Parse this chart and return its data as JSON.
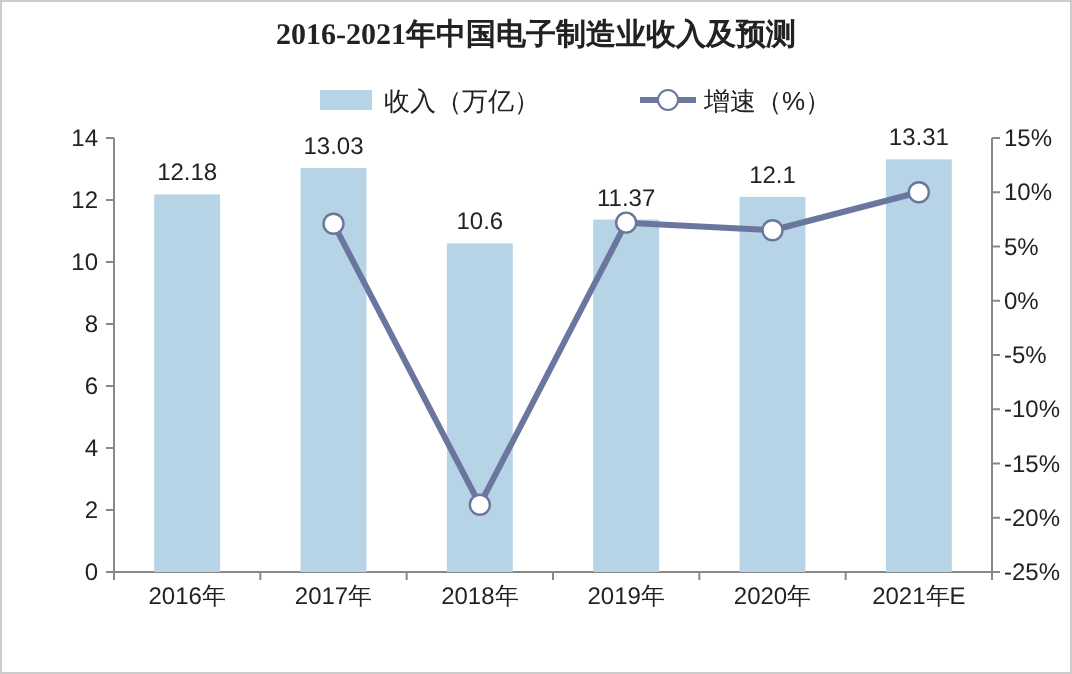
{
  "chart_data": {
    "type": "bar",
    "title": "2016-2021年中国电子制造业收入及预测",
    "categories": [
      "2016年",
      "2017年",
      "2018年",
      "2019年",
      "2020年",
      "2021年E"
    ],
    "series": [
      {
        "name": "收入（万亿）",
        "color": "#b7d3e6",
        "values": [
          12.18,
          13.03,
          10.6,
          11.37,
          12.1,
          13.31
        ],
        "data_labels": true
      },
      {
        "name": "增速（%）",
        "type": "line",
        "axis": "y2",
        "color": "#6b769e",
        "marker": "circle",
        "values": [
          null,
          7.1,
          -18.8,
          7.2,
          6.5,
          10.0
        ]
      }
    ],
    "ylim": [
      0,
      14
    ],
    "yticks": [
      0,
      2,
      4,
      6,
      8,
      10,
      12,
      14
    ],
    "y2lim": [
      -25,
      15
    ],
    "y2ticks": [
      {
        "value": -25,
        "label": "-25%"
      },
      {
        "value": -20,
        "label": "-20%"
      },
      {
        "value": -15,
        "label": "-15%"
      },
      {
        "value": -10,
        "label": "-10%"
      },
      {
        "value": -5,
        "label": "-5%"
      },
      {
        "value": 0,
        "label": "0%"
      },
      {
        "value": 5,
        "label": "5%"
      },
      {
        "value": 10,
        "label": "10%"
      },
      {
        "value": 15,
        "label": "15%"
      }
    ],
    "legend": "top",
    "grid": false
  }
}
